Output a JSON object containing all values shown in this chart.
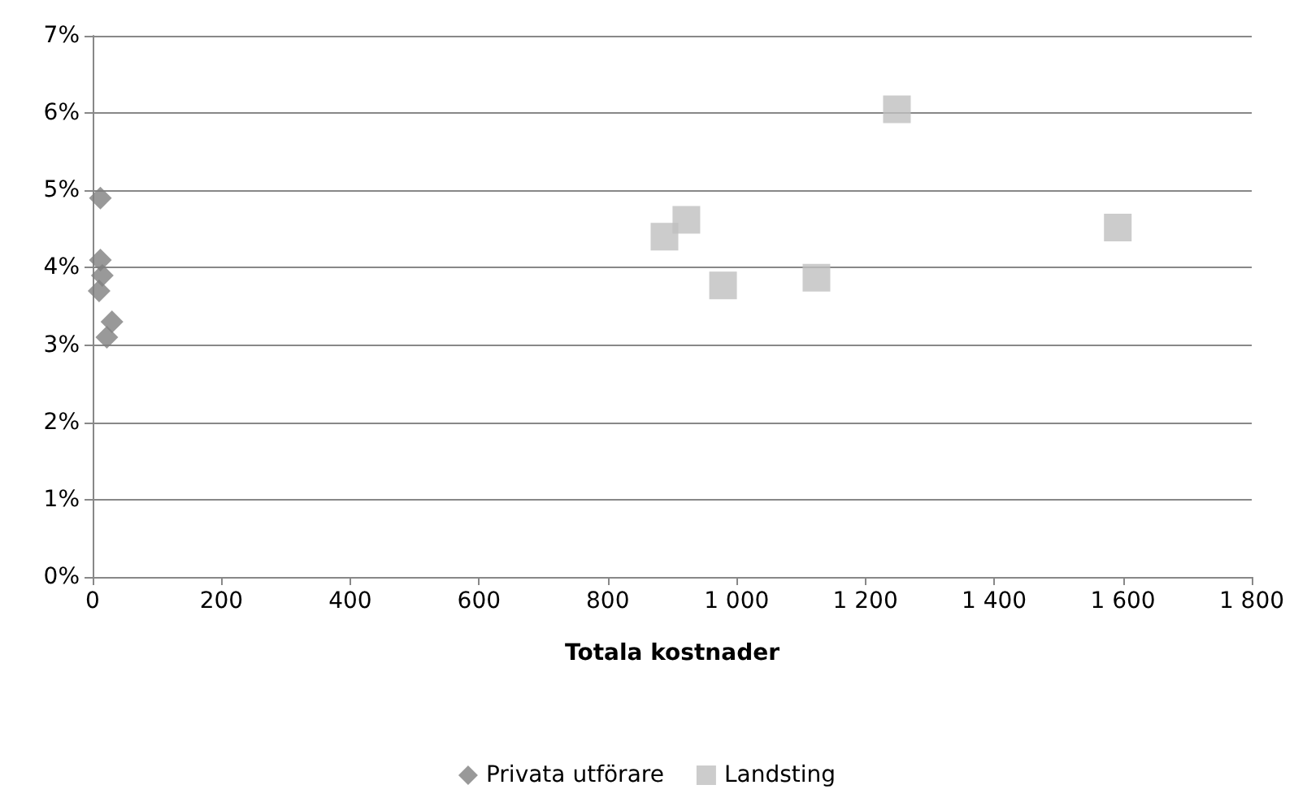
{
  "chart_data": {
    "type": "scatter",
    "xlabel": "Totala kostnader",
    "xlim": [
      0,
      1800
    ],
    "xticks": [
      0,
      200,
      400,
      600,
      800,
      {
        "value": 1000,
        "label": "1 000"
      },
      {
        "value": 1200,
        "label": "1 200"
      },
      {
        "value": 1400,
        "label": "1 400"
      },
      {
        "value": 1600,
        "label": "1 600"
      },
      {
        "value": 1800,
        "label": "1 800"
      }
    ],
    "ylim": [
      0,
      7
    ],
    "yticks": [
      {
        "value": 0,
        "label": "0%"
      },
      {
        "value": 1,
        "label": "1%"
      },
      {
        "value": 2,
        "label": "2%"
      },
      {
        "value": 3,
        "label": "3%"
      },
      {
        "value": 4,
        "label": "4%"
      },
      {
        "value": 5,
        "label": "5%"
      },
      {
        "value": 6,
        "label": "6%"
      },
      {
        "value": 7,
        "label": "7%"
      }
    ],
    "grid": "y",
    "legend": "bottom",
    "series": [
      {
        "name": "Privata utförare",
        "color": "#7f7f7f",
        "marker": "diamond",
        "x": [
          12,
          12,
          15,
          10,
          30,
          22
        ],
        "values": [
          4.9,
          4.1,
          3.9,
          3.7,
          3.3,
          3.1
        ]
      },
      {
        "name": "Landsting",
        "color": "#bfbfbf",
        "marker": "square",
        "x": [
          888,
          922,
          979,
          1124,
          1249,
          1592
        ],
        "values": [
          4.4,
          4.62,
          3.77,
          3.87,
          6.05,
          4.52
        ]
      }
    ]
  }
}
